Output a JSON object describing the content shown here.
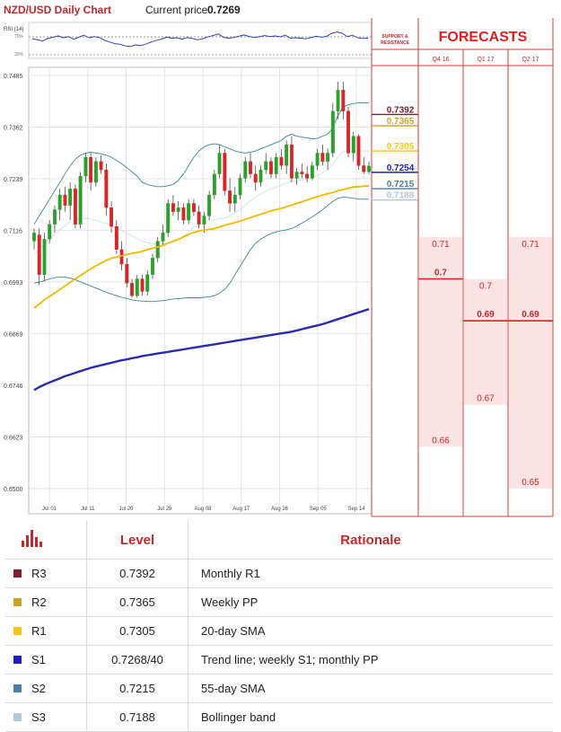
{
  "header": {
    "title": "NZD/USD Daily Chart",
    "price_label": "Current price",
    "price_value": "0.7269",
    "rsi_label": "RSI (14)",
    "rsi_level_high": "70%",
    "rsi_level_low": "30%",
    "sr_label": "SUPPORT & RESISTANCE",
    "forecasts_title": "FORECASTS"
  },
  "colors": {
    "title_red": "#c0282d",
    "r3": "#7b1f2e",
    "r2": "#c9a227",
    "r1": "#f5c518",
    "s1": "#1e1ebd",
    "s2": "#4a7fa6",
    "s3": "#b7c6d9",
    "bull": "#2ca02c",
    "bear": "#d62728",
    "sma20": "#f0b800",
    "sma200": "#2a2ab0",
    "bollinger": "#3a8a8a",
    "forecast_fill": "#fde4e4",
    "forecast_line": "#e02020"
  },
  "chart_data": [
    {
      "type": "candlestick",
      "title": "NZD/USD Daily Chart",
      "x_tick_labels": [
        "Jul 01",
        "Jul 11",
        "Jul 20",
        "Jul 29",
        "Aug 08",
        "Aug 17",
        "Aug 26",
        "Sep 05",
        "Sep 14"
      ],
      "y_tick_labels": [
        "0.7485",
        "0.7362",
        "0.7239",
        "0.7116",
        "0.6993",
        "0.6869",
        "0.6746",
        "0.6623",
        "0.6500"
      ],
      "ylim": [
        0.65,
        0.7485
      ],
      "grid": true,
      "candles": [
        {
          "o": 0.709,
          "h": 0.712,
          "l": 0.707,
          "c": 0.711
        },
        {
          "o": 0.7105,
          "h": 0.712,
          "l": 0.6985,
          "c": 0.701
        },
        {
          "o": 0.701,
          "h": 0.711,
          "l": 0.6995,
          "c": 0.7095
        },
        {
          "o": 0.7095,
          "h": 0.714,
          "l": 0.7085,
          "c": 0.713
        },
        {
          "o": 0.713,
          "h": 0.7175,
          "l": 0.711,
          "c": 0.7165
        },
        {
          "o": 0.7165,
          "h": 0.7215,
          "l": 0.714,
          "c": 0.72
        },
        {
          "o": 0.72,
          "h": 0.722,
          "l": 0.716,
          "c": 0.7175
        },
        {
          "o": 0.7175,
          "h": 0.723,
          "l": 0.714,
          "c": 0.7215
        },
        {
          "o": 0.7215,
          "h": 0.7225,
          "l": 0.712,
          "c": 0.713
        },
        {
          "o": 0.713,
          "h": 0.7255,
          "l": 0.712,
          "c": 0.7245
        },
        {
          "o": 0.7245,
          "h": 0.73,
          "l": 0.723,
          "c": 0.729
        },
        {
          "o": 0.729,
          "h": 0.73,
          "l": 0.721,
          "c": 0.723
        },
        {
          "o": 0.723,
          "h": 0.729,
          "l": 0.722,
          "c": 0.728
        },
        {
          "o": 0.728,
          "h": 0.7295,
          "l": 0.725,
          "c": 0.726
        },
        {
          "o": 0.726,
          "h": 0.7275,
          "l": 0.715,
          "c": 0.717
        },
        {
          "o": 0.717,
          "h": 0.7185,
          "l": 0.711,
          "c": 0.7125
        },
        {
          "o": 0.7125,
          "h": 0.714,
          "l": 0.706,
          "c": 0.707
        },
        {
          "o": 0.707,
          "h": 0.709,
          "l": 0.702,
          "c": 0.7035
        },
        {
          "o": 0.7035,
          "h": 0.705,
          "l": 0.698,
          "c": 0.699
        },
        {
          "o": 0.699,
          "h": 0.7,
          "l": 0.6955,
          "c": 0.696
        },
        {
          "o": 0.696,
          "h": 0.701,
          "l": 0.6955,
          "c": 0.7
        },
        {
          "o": 0.7,
          "h": 0.701,
          "l": 0.696,
          "c": 0.697
        },
        {
          "o": 0.697,
          "h": 0.702,
          "l": 0.696,
          "c": 0.701
        },
        {
          "o": 0.701,
          "h": 0.706,
          "l": 0.7,
          "c": 0.705
        },
        {
          "o": 0.705,
          "h": 0.71,
          "l": 0.704,
          "c": 0.709
        },
        {
          "o": 0.709,
          "h": 0.713,
          "l": 0.708,
          "c": 0.711
        },
        {
          "o": 0.711,
          "h": 0.719,
          "l": 0.71,
          "c": 0.718
        },
        {
          "o": 0.718,
          "h": 0.72,
          "l": 0.715,
          "c": 0.716
        },
        {
          "o": 0.716,
          "h": 0.7185,
          "l": 0.714,
          "c": 0.717
        },
        {
          "o": 0.717,
          "h": 0.718,
          "l": 0.713,
          "c": 0.714
        },
        {
          "o": 0.714,
          "h": 0.719,
          "l": 0.713,
          "c": 0.718
        },
        {
          "o": 0.718,
          "h": 0.719,
          "l": 0.715,
          "c": 0.716
        },
        {
          "o": 0.716,
          "h": 0.7175,
          "l": 0.712,
          "c": 0.713
        },
        {
          "o": 0.713,
          "h": 0.716,
          "l": 0.711,
          "c": 0.715
        },
        {
          "o": 0.715,
          "h": 0.721,
          "l": 0.714,
          "c": 0.72
        },
        {
          "o": 0.72,
          "h": 0.726,
          "l": 0.719,
          "c": 0.725
        },
        {
          "o": 0.725,
          "h": 0.732,
          "l": 0.724,
          "c": 0.73
        },
        {
          "o": 0.73,
          "h": 0.731,
          "l": 0.72,
          "c": 0.721
        },
        {
          "o": 0.721,
          "h": 0.724,
          "l": 0.716,
          "c": 0.718
        },
        {
          "o": 0.718,
          "h": 0.722,
          "l": 0.716,
          "c": 0.72
        },
        {
          "o": 0.72,
          "h": 0.725,
          "l": 0.719,
          "c": 0.724
        },
        {
          "o": 0.724,
          "h": 0.729,
          "l": 0.723,
          "c": 0.728
        },
        {
          "o": 0.728,
          "h": 0.73,
          "l": 0.724,
          "c": 0.725
        },
        {
          "o": 0.725,
          "h": 0.727,
          "l": 0.721,
          "c": 0.723
        },
        {
          "o": 0.723,
          "h": 0.727,
          "l": 0.722,
          "c": 0.726
        },
        {
          "o": 0.726,
          "h": 0.73,
          "l": 0.725,
          "c": 0.728
        },
        {
          "o": 0.728,
          "h": 0.729,
          "l": 0.724,
          "c": 0.725
        },
        {
          "o": 0.725,
          "h": 0.73,
          "l": 0.724,
          "c": 0.729
        },
        {
          "o": 0.729,
          "h": 0.731,
          "l": 0.726,
          "c": 0.727
        },
        {
          "o": 0.727,
          "h": 0.733,
          "l": 0.725,
          "c": 0.732
        },
        {
          "o": 0.732,
          "h": 0.734,
          "l": 0.723,
          "c": 0.724
        },
        {
          "o": 0.724,
          "h": 0.7265,
          "l": 0.7225,
          "c": 0.7255
        },
        {
          "o": 0.7255,
          "h": 0.7275,
          "l": 0.724,
          "c": 0.725
        },
        {
          "o": 0.725,
          "h": 0.727,
          "l": 0.723,
          "c": 0.724
        },
        {
          "o": 0.724,
          "h": 0.728,
          "l": 0.7235,
          "c": 0.727
        },
        {
          "o": 0.727,
          "h": 0.731,
          "l": 0.726,
          "c": 0.73
        },
        {
          "o": 0.73,
          "h": 0.732,
          "l": 0.727,
          "c": 0.728
        },
        {
          "o": 0.728,
          "h": 0.731,
          "l": 0.726,
          "c": 0.73
        },
        {
          "o": 0.73,
          "h": 0.742,
          "l": 0.729,
          "c": 0.74
        },
        {
          "o": 0.74,
          "h": 0.747,
          "l": 0.738,
          "c": 0.745
        },
        {
          "o": 0.745,
          "h": 0.747,
          "l": 0.738,
          "c": 0.74
        },
        {
          "o": 0.74,
          "h": 0.741,
          "l": 0.729,
          "c": 0.73
        },
        {
          "o": 0.73,
          "h": 0.735,
          "l": 0.728,
          "c": 0.734
        },
        {
          "o": 0.734,
          "h": 0.7345,
          "l": 0.726,
          "c": 0.727
        },
        {
          "o": 0.727,
          "h": 0.729,
          "l": 0.725,
          "c": 0.7255
        },
        {
          "o": 0.7255,
          "h": 0.728,
          "l": 0.725,
          "c": 0.7269
        }
      ],
      "series": [
        {
          "name": "",
          "style": "sma20",
          "values": [
            0.693,
            0.694,
            0.695,
            0.6958,
            0.6966,
            0.6975,
            0.6983,
            0.6992,
            0.7,
            0.7008,
            0.7016,
            0.7024,
            0.7031,
            0.7038,
            0.7044,
            0.7049,
            0.7052,
            0.7055,
            0.7058,
            0.7061,
            0.7063,
            0.7066,
            0.707,
            0.7073,
            0.7076,
            0.708,
            0.7085,
            0.709,
            0.7094,
            0.71,
            0.7106,
            0.7111,
            0.7114,
            0.7116,
            0.7118,
            0.712,
            0.7124,
            0.7128,
            0.7131,
            0.7134,
            0.7138,
            0.7142,
            0.7146,
            0.715,
            0.7154,
            0.7158,
            0.7162,
            0.7165,
            0.7168,
            0.7172,
            0.7176,
            0.718,
            0.7184,
            0.7188,
            0.7192,
            0.7196,
            0.72,
            0.7203,
            0.7206,
            0.721,
            0.7213,
            0.7216,
            0.7219,
            0.722,
            0.7221,
            0.7222
          ]
        },
        {
          "name": "",
          "style": "sma200",
          "values": [
            0.6735,
            0.6742,
            0.6748,
            0.6753,
            0.6758,
            0.6763,
            0.6768,
            0.6772,
            0.6776,
            0.678,
            0.6784,
            0.6788,
            0.6791,
            0.6794,
            0.6797,
            0.68,
            0.6803,
            0.6806,
            0.6808,
            0.6811,
            0.6813,
            0.6816,
            0.6818,
            0.682,
            0.6822,
            0.6824,
            0.6826,
            0.6828,
            0.683,
            0.6832,
            0.6834,
            0.6836,
            0.6838,
            0.684,
            0.6842,
            0.6844,
            0.6846,
            0.6848,
            0.685,
            0.6852,
            0.6854,
            0.6856,
            0.6858,
            0.686,
            0.6862,
            0.6864,
            0.6866,
            0.6868,
            0.687,
            0.6872,
            0.6874,
            0.6877,
            0.688,
            0.6883,
            0.6886,
            0.6889,
            0.6892,
            0.6896,
            0.69,
            0.6904,
            0.6908,
            0.6912,
            0.6916,
            0.692,
            0.6924,
            0.6928
          ]
        },
        {
          "name": "",
          "style": "bollinger-upper",
          "values": [
            0.713,
            0.715,
            0.717,
            0.719,
            0.721,
            0.723,
            0.725,
            0.727,
            0.7285,
            0.7295,
            0.73,
            0.7302,
            0.73,
            0.7298,
            0.7295,
            0.729,
            0.7282,
            0.7275,
            0.7265,
            0.7255,
            0.7245,
            0.723,
            0.7225,
            0.7222,
            0.722,
            0.722,
            0.7222,
            0.7225,
            0.7235,
            0.725,
            0.727,
            0.729,
            0.7305,
            0.7315,
            0.732,
            0.7322,
            0.732,
            0.7315,
            0.731,
            0.7305,
            0.7302,
            0.73,
            0.7302,
            0.7305,
            0.731,
            0.7315,
            0.732,
            0.7325,
            0.733,
            0.734,
            0.7345,
            0.734,
            0.7338,
            0.7336,
            0.7334,
            0.7335,
            0.734,
            0.7345,
            0.736,
            0.739,
            0.741,
            0.7415,
            0.7418,
            0.742,
            0.742,
            0.742
          ]
        },
        {
          "name": "",
          "style": "bollinger-lower",
          "values": [
            0.699,
            0.6992,
            0.6996,
            0.7,
            0.7003,
            0.7004,
            0.7004,
            0.7002,
            0.6998,
            0.6993,
            0.6988,
            0.6983,
            0.6978,
            0.6973,
            0.6968,
            0.6964,
            0.696,
            0.6956,
            0.6953,
            0.695,
            0.6948,
            0.6947,
            0.6946,
            0.6946,
            0.6947,
            0.6948,
            0.695,
            0.6952,
            0.6953,
            0.6954,
            0.6955,
            0.6955,
            0.6955,
            0.6956,
            0.6957,
            0.696,
            0.6966,
            0.6975,
            0.699,
            0.701,
            0.703,
            0.705,
            0.707,
            0.7085,
            0.7095,
            0.7102,
            0.7108,
            0.7112,
            0.7115,
            0.7117,
            0.712,
            0.7126,
            0.7133,
            0.714,
            0.7148,
            0.7156,
            0.7165,
            0.7175,
            0.7185,
            0.7192,
            0.7195,
            0.7194,
            0.7192,
            0.719,
            0.719,
            0.719
          ]
        },
        {
          "name": "",
          "style": "bollinger-mid",
          "values": [
            0.706,
            0.7071,
            0.7083,
            0.7095,
            0.7106,
            0.7117,
            0.7127,
            0.7136,
            0.7142,
            0.7144,
            0.7144,
            0.7143,
            0.7139,
            0.7136,
            0.7132,
            0.7127,
            0.7121,
            0.7116,
            0.7109,
            0.7103,
            0.7097,
            0.7089,
            0.7086,
            0.7084,
            0.7084,
            0.7084,
            0.7086,
            0.7089,
            0.7094,
            0.7102,
            0.7112,
            0.7123,
            0.713,
            0.7136,
            0.7139,
            0.7141,
            0.7143,
            0.7145,
            0.715,
            0.7158,
            0.7166,
            0.7175,
            0.7186,
            0.7195,
            0.7203,
            0.7209,
            0.7214,
            0.7219,
            0.7223,
            0.7229,
            0.7233,
            0.7233,
            0.7236,
            0.7238,
            0.7241,
            0.7246,
            0.7253,
            0.726,
            0.7273,
            0.7291,
            0.7303,
            0.7305,
            0.7305,
            0.7305,
            0.7305,
            0.7305
          ]
        }
      ]
    },
    {
      "type": "line",
      "title": "RSI (14)",
      "ylim": [
        0,
        100
      ],
      "reference_levels": [
        70,
        30
      ],
      "values": [
        55,
        52,
        48,
        56,
        60,
        64,
        58,
        62,
        54,
        60,
        66,
        58,
        62,
        59,
        50,
        45,
        40,
        38,
        33,
        31,
        36,
        34,
        39,
        45,
        50,
        54,
        60,
        57,
        58,
        54,
        59,
        56,
        52,
        55,
        61,
        65,
        70,
        60,
        57,
        59,
        63,
        67,
        62,
        59,
        62,
        65,
        62,
        64,
        61,
        66,
        57,
        58,
        57,
        55,
        59,
        63,
        60,
        63,
        72,
        76,
        72,
        62,
        66,
        58,
        56,
        57
      ]
    }
  ],
  "support_resistance": {
    "levels": [
      {
        "key": "r3",
        "label": "0.7392",
        "value": 0.7392
      },
      {
        "key": "r2",
        "label": "0.7365",
        "value": 0.7365
      },
      {
        "key": "r1",
        "label": "0.7305",
        "value": 0.7305
      },
      {
        "key": "s1",
        "label": "0.7254",
        "value": 0.7254
      },
      {
        "key": "s2",
        "label": "0.7215",
        "value": 0.7215
      },
      {
        "key": "s3",
        "label": "0.7188",
        "value": 0.7188
      }
    ]
  },
  "forecasts": {
    "columns": [
      {
        "label": "Q4 16",
        "high": 0.71,
        "high_label": "0.71",
        "mid": 0.7,
        "mid_label": "0.7",
        "low": 0.66,
        "low_label": "0.66"
      },
      {
        "label": "Q1 17",
        "high": 0.7,
        "high_label": "0.7",
        "mid": 0.69,
        "mid_label": "0.69",
        "low": 0.67,
        "low_label": "0.67"
      },
      {
        "label": "Q2 17",
        "high": 0.71,
        "high_label": "0.71",
        "mid": 0.69,
        "mid_label": "0.69",
        "low": 0.65,
        "low_label": "0.65"
      }
    ]
  },
  "table": {
    "headers": {
      "level": "Level",
      "rationale": "Rationale"
    },
    "rows": [
      {
        "key": "r3",
        "name": "R3",
        "value": "0.7392",
        "rationale": "Monthly R1"
      },
      {
        "key": "r2",
        "name": "R2",
        "value": "0.7365",
        "rationale": "Weekly PP"
      },
      {
        "key": "r1",
        "name": "R1",
        "value": "0.7305",
        "rationale": "20-day SMA"
      },
      {
        "key": "s1",
        "name": "S1",
        "value": "0.7268/40",
        "rationale": "Trend line; weekly S1; monthly PP"
      },
      {
        "key": "s2",
        "name": "S2",
        "value": "0.7215",
        "rationale": "55-day SMA"
      },
      {
        "key": "s3",
        "name": "S3",
        "value": "0.7188",
        "rationale": "Bollinger band"
      }
    ]
  }
}
